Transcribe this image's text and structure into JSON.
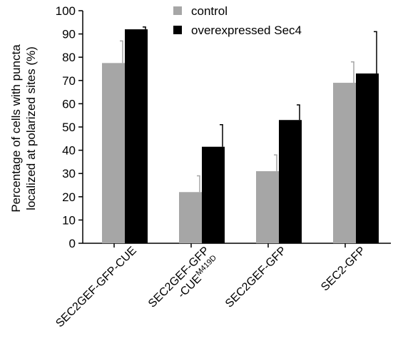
{
  "chart_data": {
    "type": "bar",
    "ylabel_line1": "Percentage of cells with puncta",
    "ylabel_line2": "localized at polarized sites (%)",
    "ylim": [
      0,
      100
    ],
    "yticks": [
      0,
      10,
      20,
      30,
      40,
      50,
      60,
      70,
      80,
      90,
      100
    ],
    "categories": [
      {
        "line1": "SEC2GEF-GFP-CUE",
        "line2": "",
        "sup": ""
      },
      {
        "line1": "SEC2GEF-GFP",
        "line2": "-CUE",
        "sup": "M419D"
      },
      {
        "line1": "SEC2GEF-GFP",
        "line2": "",
        "sup": ""
      },
      {
        "line1": "SEC2-GFP",
        "line2": "",
        "sup": ""
      }
    ],
    "series": [
      {
        "name": "control",
        "color": "#a6a6a6",
        "values": [
          77.5,
          22,
          31,
          69
        ],
        "errors": [
          9.5,
          7,
          7,
          9
        ]
      },
      {
        "name": "overexpressed Sec4",
        "color": "#000000",
        "values": [
          92,
          41.5,
          53,
          73
        ],
        "errors": [
          1,
          9.5,
          6.5,
          18
        ]
      }
    ],
    "legend_position": "top-center",
    "grid": false
  }
}
